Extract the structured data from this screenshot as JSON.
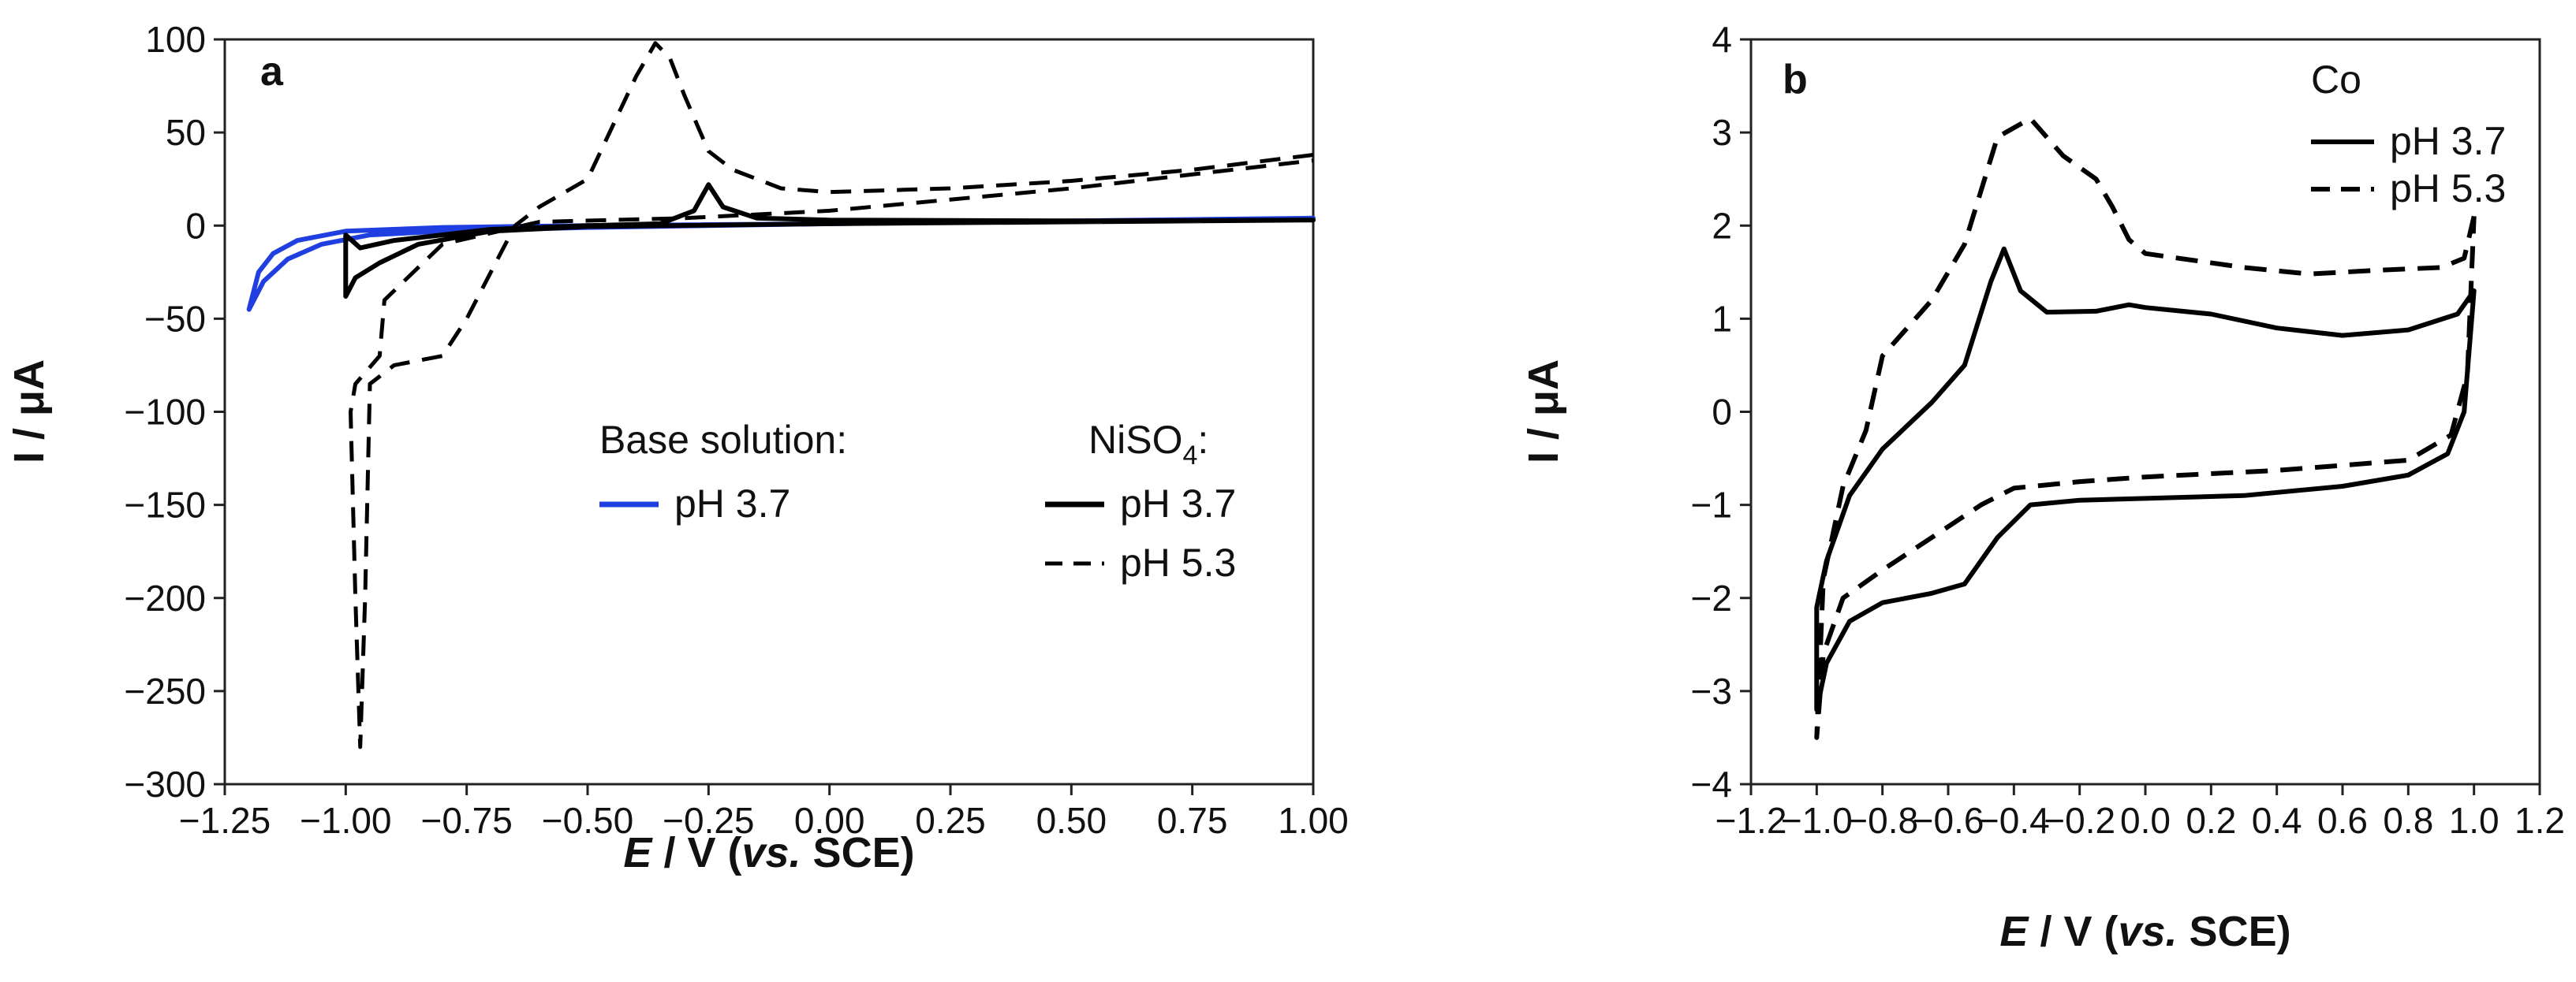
{
  "chart_data": [
    {
      "type": "line",
      "panel_label": "a",
      "xlabel_italic": "E",
      "xlabel_rest": " / V (",
      "xlabel_vs": "vs.",
      "xlabel_end": " SCE)",
      "ylabel": "I / μA",
      "xlim": [
        -1.25,
        1.0
      ],
      "ylim": [
        -300,
        100
      ],
      "x_ticks": [
        -1.25,
        -1.0,
        -0.75,
        -0.5,
        -0.25,
        0.0,
        0.25,
        0.5,
        0.75,
        1.0
      ],
      "x_tick_labels": [
        "−1.25",
        "−1.00",
        "−0.75",
        "−0.50",
        "−0.25",
        "0.00",
        "0.25",
        "0.50",
        "0.75",
        "1.00"
      ],
      "y_ticks": [
        -300,
        -250,
        -200,
        -150,
        -100,
        -50,
        0,
        50,
        100
      ],
      "y_tick_labels": [
        "−300",
        "−250",
        "−200",
        "−150",
        "−100",
        "−50",
        "0",
        "50",
        "100"
      ],
      "legend_groups": [
        {
          "title": "Base solution:",
          "title_sub": ""
        },
        {
          "title": "NiSO",
          "title_sub": "4",
          "title_suffix": ":"
        }
      ],
      "series": [
        {
          "name": "pH 3.7",
          "group": "Base solution:",
          "color": "#1f3fe0",
          "dash": "solid",
          "points": [
            [
              1.0,
              4
            ],
            [
              0.5,
              2.5
            ],
            [
              0.0,
              1
            ],
            [
              -0.5,
              0
            ],
            [
              -0.8,
              -1
            ],
            [
              -1.0,
              -3
            ],
            [
              -1.1,
              -8
            ],
            [
              -1.15,
              -15
            ],
            [
              -1.18,
              -25
            ],
            [
              -1.2,
              -45
            ],
            [
              -1.17,
              -30
            ],
            [
              -1.12,
              -18
            ],
            [
              -1.05,
              -10
            ],
            [
              -0.95,
              -5
            ],
            [
              -0.8,
              -3
            ],
            [
              -0.5,
              -1
            ],
            [
              0.0,
              1
            ],
            [
              0.5,
              2.5
            ],
            [
              1.0,
              4
            ]
          ]
        },
        {
          "name": "pH 3.7",
          "group": "NiSO4",
          "color": "#000000",
          "dash": "solid",
          "points": [
            [
              1.0,
              3
            ],
            [
              0.5,
              2
            ],
            [
              0.0,
              1
            ],
            [
              -0.5,
              -0.5
            ],
            [
              -0.7,
              -3
            ],
            [
              -0.85,
              -10
            ],
            [
              -0.93,
              -20
            ],
            [
              -0.98,
              -28
            ],
            [
              -1.0,
              -38
            ],
            [
              -1.0,
              -5
            ],
            [
              -0.97,
              -12
            ],
            [
              -0.9,
              -8
            ],
            [
              -0.7,
              -2
            ],
            [
              -0.5,
              0
            ],
            [
              -0.35,
              1
            ],
            [
              -0.28,
              8
            ],
            [
              -0.25,
              22
            ],
            [
              -0.22,
              10
            ],
            [
              -0.15,
              4
            ],
            [
              0.0,
              3
            ],
            [
              0.5,
              2.5
            ],
            [
              1.0,
              3
            ]
          ]
        },
        {
          "name": "pH 5.3",
          "group": "NiSO4",
          "color": "#000000",
          "dash": "dashed",
          "points": [
            [
              1.0,
              38
            ],
            [
              0.75,
              30
            ],
            [
              0.5,
              24
            ],
            [
              0.25,
              20
            ],
            [
              0.0,
              18
            ],
            [
              -0.1,
              20
            ],
            [
              -0.2,
              30
            ],
            [
              -0.25,
              40
            ],
            [
              -0.3,
              70
            ],
            [
              -0.33,
              90
            ],
            [
              -0.36,
              98
            ],
            [
              -0.4,
              80
            ],
            [
              -0.5,
              25
            ],
            [
              -0.6,
              10
            ],
            [
              -0.65,
              0
            ],
            [
              -0.7,
              -25
            ],
            [
              -0.75,
              -50
            ],
            [
              -0.8,
              -70
            ],
            [
              -0.9,
              -75
            ],
            [
              -0.95,
              -85
            ],
            [
              -0.96,
              -200
            ],
            [
              -0.97,
              -280
            ],
            [
              -0.98,
              -200
            ],
            [
              -0.99,
              -100
            ],
            [
              -0.98,
              -85
            ],
            [
              -0.93,
              -70
            ],
            [
              -0.92,
              -40
            ],
            [
              -0.88,
              -30
            ],
            [
              -0.8,
              -10
            ],
            [
              -0.6,
              2
            ],
            [
              -0.3,
              4
            ],
            [
              0.0,
              8
            ],
            [
              0.5,
              20
            ],
            [
              1.0,
              35
            ]
          ]
        }
      ]
    },
    {
      "type": "line",
      "panel_label": "b",
      "xlabel_italic": "E",
      "xlabel_rest": " / V (",
      "xlabel_vs": "vs.",
      "xlabel_end": " SCE)",
      "ylabel": "I / μA",
      "xlim": [
        -1.2,
        1.2
      ],
      "ylim": [
        -4,
        4
      ],
      "x_ticks": [
        -1.2,
        -1.0,
        -0.8,
        -0.6,
        -0.4,
        -0.2,
        0.0,
        0.2,
        0.4,
        0.6,
        0.8,
        1.0,
        1.2
      ],
      "x_tick_labels": [
        "−1.2",
        "−1.0",
        "−0.8",
        "−0.6",
        "−0.4",
        "−0.2",
        "0.0",
        "0.2",
        "0.4",
        "0.6",
        "0.8",
        "1.0",
        "1.2"
      ],
      "y_ticks": [
        -4,
        -3,
        -2,
        -1,
        0,
        1,
        2,
        3,
        4
      ],
      "y_tick_labels": [
        "−4",
        "−3",
        "−2",
        "−1",
        "0",
        "1",
        "2",
        "3",
        "4"
      ],
      "legend_title": "Co",
      "series": [
        {
          "name": "pH 3.7",
          "color": "#000000",
          "dash": "solid",
          "points": [
            [
              1.0,
              1.3
            ],
            [
              0.95,
              1.05
            ],
            [
              0.8,
              0.88
            ],
            [
              0.6,
              0.82
            ],
            [
              0.4,
              0.9
            ],
            [
              0.2,
              1.05
            ],
            [
              0.0,
              1.12
            ],
            [
              -0.05,
              1.15
            ],
            [
              -0.15,
              1.08
            ],
            [
              -0.3,
              1.07
            ],
            [
              -0.38,
              1.3
            ],
            [
              -0.43,
              1.75
            ],
            [
              -0.47,
              1.4
            ],
            [
              -0.55,
              0.5
            ],
            [
              -0.65,
              0.1
            ],
            [
              -0.8,
              -0.4
            ],
            [
              -0.9,
              -0.9
            ],
            [
              -0.97,
              -1.6
            ],
            [
              -1.0,
              -2.1
            ],
            [
              -1.0,
              -3.2
            ],
            [
              -0.97,
              -2.7
            ],
            [
              -0.9,
              -2.25
            ],
            [
              -0.8,
              -2.05
            ],
            [
              -0.65,
              -1.95
            ],
            [
              -0.55,
              -1.85
            ],
            [
              -0.45,
              -1.35
            ],
            [
              -0.35,
              -1.0
            ],
            [
              -0.2,
              -0.95
            ],
            [
              0.0,
              -0.93
            ],
            [
              0.3,
              -0.9
            ],
            [
              0.6,
              -0.8
            ],
            [
              0.8,
              -0.68
            ],
            [
              0.92,
              -0.45
            ],
            [
              0.97,
              0.0
            ],
            [
              1.0,
              1.3
            ]
          ]
        },
        {
          "name": "pH 5.3",
          "color": "#000000",
          "dash": "dashed",
          "points": [
            [
              1.0,
              2.1
            ],
            [
              0.97,
              1.65
            ],
            [
              0.9,
              1.55
            ],
            [
              0.7,
              1.52
            ],
            [
              0.5,
              1.48
            ],
            [
              0.3,
              1.55
            ],
            [
              0.1,
              1.65
            ],
            [
              0.0,
              1.7
            ],
            [
              -0.05,
              1.85
            ],
            [
              -0.1,
              2.2
            ],
            [
              -0.15,
              2.5
            ],
            [
              -0.25,
              2.75
            ],
            [
              -0.35,
              3.15
            ],
            [
              -0.45,
              2.95
            ],
            [
              -0.55,
              1.8
            ],
            [
              -0.65,
              1.2
            ],
            [
              -0.8,
              0.6
            ],
            [
              -0.85,
              -0.2
            ],
            [
              -0.92,
              -0.8
            ],
            [
              -0.98,
              -1.8
            ],
            [
              -1.0,
              -3.5
            ],
            [
              -0.98,
              -2.6
            ],
            [
              -0.92,
              -2.0
            ],
            [
              -0.8,
              -1.7
            ],
            [
              -0.65,
              -1.35
            ],
            [
              -0.5,
              -1.0
            ],
            [
              -0.4,
              -0.82
            ],
            [
              -0.2,
              -0.75
            ],
            [
              0.0,
              -0.7
            ],
            [
              0.4,
              -0.63
            ],
            [
              0.8,
              -0.52
            ],
            [
              0.93,
              -0.25
            ],
            [
              0.98,
              0.4
            ],
            [
              1.0,
              2.1
            ]
          ]
        }
      ]
    }
  ]
}
